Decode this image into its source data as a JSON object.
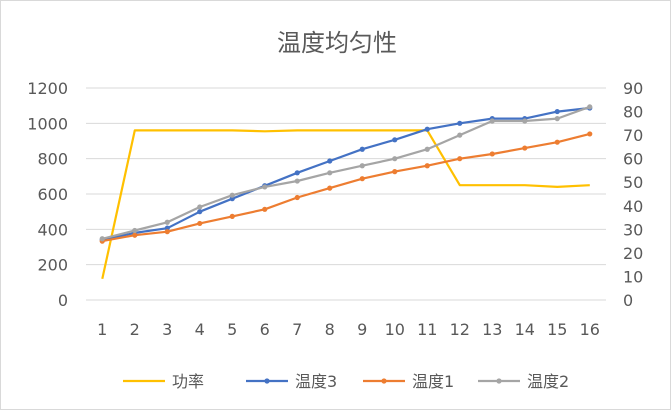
{
  "chart_data": {
    "type": "line",
    "title": "温度均匀性",
    "x": [
      "1",
      "2",
      "3",
      "4",
      "5",
      "6",
      "7",
      "8",
      "9",
      "10",
      "11",
      "12",
      "13",
      "14",
      "15",
      "16"
    ],
    "y_left": {
      "ticks": [
        "0",
        "200",
        "400",
        "600",
        "800",
        "1000",
        "1200"
      ],
      "ylim": [
        0,
        1200
      ]
    },
    "y_right": {
      "ticks": [
        "0",
        "10",
        "20",
        "30",
        "40",
        "50",
        "60",
        "70",
        "80",
        "90"
      ],
      "ylim": [
        0,
        90
      ]
    },
    "grid": true,
    "legend_position": "bottom",
    "series": [
      {
        "name": "功率",
        "color": "#FFC000",
        "axis": "left",
        "markers": false,
        "values": [
          120,
          960,
          960,
          960,
          960,
          955,
          960,
          960,
          960,
          960,
          960,
          650,
          650,
          650,
          640,
          650
        ]
      },
      {
        "name": "温度3",
        "color": "#4472C4",
        "axis": "right",
        "markers": true,
        "values": [
          25.5,
          28.5,
          30.5,
          37.5,
          43,
          48.5,
          54,
          59,
          64,
          68,
          72.5,
          75,
          77,
          77,
          80,
          81.5
        ]
      },
      {
        "name": "温度1",
        "color": "#ED7D31",
        "axis": "right",
        "markers": true,
        "values": [
          25,
          27.5,
          29,
          32.5,
          35.5,
          38.5,
          43.5,
          47.5,
          51.5,
          54.5,
          57,
          60,
          62,
          64.5,
          67,
          70.5
        ]
      },
      {
        "name": "温度2",
        "color": "#A5A5A5",
        "axis": "right",
        "markers": true,
        "values": [
          26,
          29.5,
          33,
          39.5,
          44.5,
          48,
          50.5,
          54,
          57,
          60,
          64,
          70,
          76,
          76,
          77,
          82
        ]
      }
    ]
  }
}
